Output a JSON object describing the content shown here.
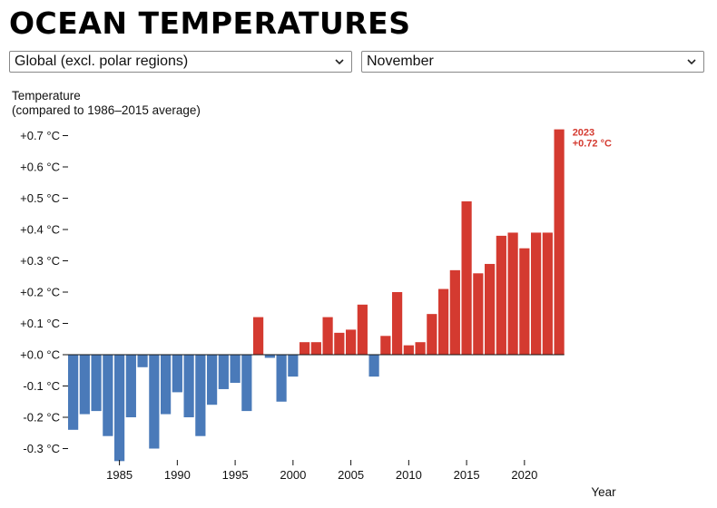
{
  "header": {
    "title": "OCEAN TEMPERATURES"
  },
  "controls": {
    "region": {
      "selected": "Global (excl. polar regions)"
    },
    "month": {
      "selected": "November"
    }
  },
  "chart_data": {
    "type": "bar",
    "title": "OCEAN TEMPERATURES",
    "ylabel_line1": "Temperature",
    "ylabel_line2": "(compared to 1986–2015 average)",
    "xlabel": "Year",
    "ylim": [
      -0.35,
      0.75
    ],
    "y_ticks": [
      {
        "value": 0.7,
        "label": "+0.7 °C"
      },
      {
        "value": 0.6,
        "label": "+0.6 °C"
      },
      {
        "value": 0.5,
        "label": "+0.5 °C"
      },
      {
        "value": 0.4,
        "label": "+0.4 °C"
      },
      {
        "value": 0.3,
        "label": "+0.3 °C"
      },
      {
        "value": 0.2,
        "label": "+0.2 °C"
      },
      {
        "value": 0.1,
        "label": "+0.1 °C"
      },
      {
        "value": 0.0,
        "label": "+0.0 °C"
      },
      {
        "value": -0.1,
        "label": "-0.1 °C"
      },
      {
        "value": -0.2,
        "label": "-0.2 °C"
      },
      {
        "value": -0.3,
        "label": "-0.3 °C"
      }
    ],
    "x_ticks": [
      1985,
      1990,
      1995,
      2000,
      2005,
      2010,
      2015,
      2020
    ],
    "years": [
      1981,
      1982,
      1983,
      1984,
      1985,
      1986,
      1987,
      1988,
      1989,
      1990,
      1991,
      1992,
      1993,
      1994,
      1995,
      1996,
      1997,
      1998,
      1999,
      2000,
      2001,
      2002,
      2003,
      2004,
      2005,
      2006,
      2007,
      2008,
      2009,
      2010,
      2011,
      2012,
      2013,
      2014,
      2015,
      2016,
      2017,
      2018,
      2019,
      2020,
      2021,
      2022,
      2023
    ],
    "values": [
      -0.24,
      -0.19,
      -0.18,
      -0.26,
      -0.34,
      -0.2,
      -0.04,
      -0.3,
      -0.19,
      -0.12,
      -0.2,
      -0.26,
      -0.16,
      -0.11,
      -0.09,
      -0.18,
      0.12,
      -0.01,
      -0.15,
      -0.07,
      0.04,
      0.04,
      0.12,
      0.07,
      0.08,
      0.16,
      -0.07,
      0.06,
      0.2,
      0.03,
      0.04,
      0.13,
      0.21,
      0.27,
      0.49,
      0.26,
      0.29,
      0.38,
      0.39,
      0.34,
      0.39,
      0.39,
      0.72
    ],
    "colors": {
      "positive": "#d43a30",
      "negative": "#4a7ab9"
    },
    "annotation": {
      "year": "2023",
      "value_label": "+0.72 °C"
    }
  }
}
